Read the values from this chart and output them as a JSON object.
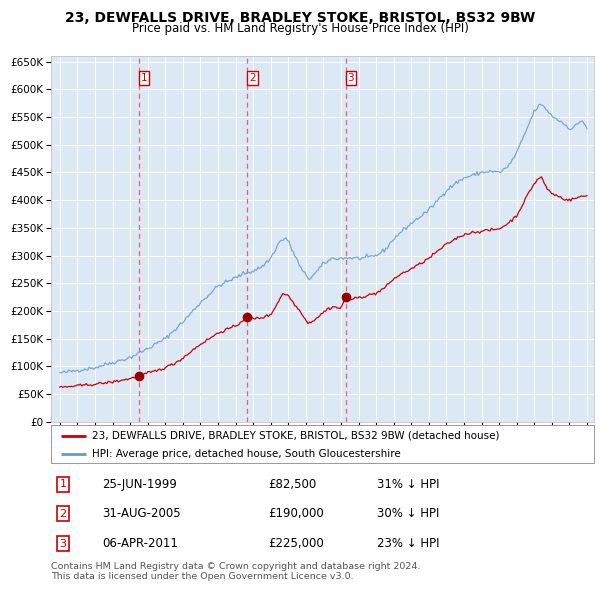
{
  "title": "23, DEWFALLS DRIVE, BRADLEY STOKE, BRISTOL, BS32 9BW",
  "subtitle": "Price paid vs. HM Land Registry's House Price Index (HPI)",
  "title_fontsize": 10,
  "subtitle_fontsize": 8.5,
  "plot_bg_color": "#dce9f5",
  "fig_bg_color": "#ffffff",
  "legend_label_red": "23, DEWFALLS DRIVE, BRADLEY STOKE, BRISTOL, BS32 9BW (detached house)",
  "legend_label_blue": "HPI: Average price, detached house, South Gloucestershire",
  "footnote_line1": "Contains HM Land Registry data © Crown copyright and database right 2024.",
  "footnote_line2": "This data is licensed under the Open Government Licence v3.0.",
  "sales": [
    {
      "num": 1,
      "date_year": 1999.48,
      "price": 82500,
      "label": "25-JUN-1999",
      "price_label": "£82,500",
      "hpi_diff": "31% ↓ HPI"
    },
    {
      "num": 2,
      "date_year": 2005.66,
      "price": 190000,
      "label": "31-AUG-2005",
      "price_label": "£190,000",
      "hpi_diff": "30% ↓ HPI"
    },
    {
      "num": 3,
      "date_year": 2011.26,
      "price": 225000,
      "label": "06-APR-2011",
      "price_label": "£225,000",
      "hpi_diff": "23% ↓ HPI"
    }
  ],
  "red_line_color": "#cc0000",
  "blue_line_color": "#6699cc",
  "vline_color": "#e05050",
  "dot_color": "#990000",
  "ylim": [
    0,
    660000
  ],
  "yticks": [
    0,
    50000,
    100000,
    150000,
    200000,
    250000,
    300000,
    350000,
    400000,
    450000,
    500000,
    550000,
    600000,
    650000
  ],
  "xlim_start": 1994.5,
  "xlim_end": 2025.4,
  "xticks": [
    1995,
    1996,
    1997,
    1998,
    1999,
    2000,
    2001,
    2002,
    2003,
    2004,
    2005,
    2006,
    2007,
    2008,
    2009,
    2010,
    2011,
    2012,
    2013,
    2014,
    2015,
    2016,
    2017,
    2018,
    2019,
    2020,
    2021,
    2022,
    2023,
    2024,
    2025
  ],
  "hpi_anchors": [
    [
      1995.0,
      88000
    ],
    [
      1996.0,
      93000
    ],
    [
      1997.0,
      98000
    ],
    [
      1998.0,
      107000
    ],
    [
      1999.0,
      116000
    ],
    [
      2000.0,
      132000
    ],
    [
      2001.0,
      150000
    ],
    [
      2002.0,
      180000
    ],
    [
      2003.0,
      215000
    ],
    [
      2004.0,
      245000
    ],
    [
      2005.0,
      260000
    ],
    [
      2005.5,
      268000
    ],
    [
      2006.0,
      272000
    ],
    [
      2006.5,
      280000
    ],
    [
      2007.0,
      295000
    ],
    [
      2007.5,
      325000
    ],
    [
      2007.9,
      332000
    ],
    [
      2008.3,
      305000
    ],
    [
      2008.8,
      272000
    ],
    [
      2009.2,
      258000
    ],
    [
      2009.6,
      270000
    ],
    [
      2010.0,
      285000
    ],
    [
      2010.5,
      295000
    ],
    [
      2011.0,
      295000
    ],
    [
      2011.5,
      296000
    ],
    [
      2012.0,
      295000
    ],
    [
      2012.5,
      296000
    ],
    [
      2013.0,
      300000
    ],
    [
      2013.5,
      310000
    ],
    [
      2014.0,
      330000
    ],
    [
      2014.5,
      345000
    ],
    [
      2015.0,
      358000
    ],
    [
      2015.5,
      370000
    ],
    [
      2016.0,
      382000
    ],
    [
      2016.5,
      400000
    ],
    [
      2017.0,
      418000
    ],
    [
      2017.5,
      430000
    ],
    [
      2018.0,
      440000
    ],
    [
      2018.5,
      445000
    ],
    [
      2019.0,
      450000
    ],
    [
      2019.5,
      452000
    ],
    [
      2020.0,
      450000
    ],
    [
      2020.5,
      460000
    ],
    [
      2021.0,
      485000
    ],
    [
      2021.4,
      515000
    ],
    [
      2021.8,
      545000
    ],
    [
      2022.0,
      560000
    ],
    [
      2022.3,
      572000
    ],
    [
      2022.6,
      568000
    ],
    [
      2022.9,
      555000
    ],
    [
      2023.2,
      548000
    ],
    [
      2023.5,
      542000
    ],
    [
      2023.8,
      535000
    ],
    [
      2024.1,
      528000
    ],
    [
      2024.4,
      535000
    ],
    [
      2024.7,
      545000
    ],
    [
      2025.0,
      530000
    ]
  ],
  "red_anchors": [
    [
      1995.0,
      62000
    ],
    [
      1996.0,
      65000
    ],
    [
      1997.0,
      68000
    ],
    [
      1998.0,
      72000
    ],
    [
      1999.0,
      78000
    ],
    [
      1999.48,
      82500
    ],
    [
      2000.0,
      88000
    ],
    [
      2000.5,
      92000
    ],
    [
      2001.0,
      98000
    ],
    [
      2001.5,
      105000
    ],
    [
      2002.0,
      115000
    ],
    [
      2002.5,
      128000
    ],
    [
      2003.0,
      140000
    ],
    [
      2003.5,
      150000
    ],
    [
      2004.0,
      160000
    ],
    [
      2004.5,
      167000
    ],
    [
      2005.0,
      172000
    ],
    [
      2005.66,
      190000
    ],
    [
      2006.0,
      186000
    ],
    [
      2006.5,
      188000
    ],
    [
      2007.0,
      193000
    ],
    [
      2007.4,
      215000
    ],
    [
      2007.7,
      232000
    ],
    [
      2008.0,
      228000
    ],
    [
      2008.4,
      210000
    ],
    [
      2008.8,
      195000
    ],
    [
      2009.1,
      178000
    ],
    [
      2009.4,
      182000
    ],
    [
      2009.8,
      192000
    ],
    [
      2010.2,
      203000
    ],
    [
      2010.6,
      208000
    ],
    [
      2011.0,
      204000
    ],
    [
      2011.26,
      225000
    ],
    [
      2011.5,
      220000
    ],
    [
      2012.0,
      224000
    ],
    [
      2012.5,
      228000
    ],
    [
      2013.0,
      232000
    ],
    [
      2013.5,
      242000
    ],
    [
      2014.0,
      258000
    ],
    [
      2014.5,
      268000
    ],
    [
      2015.0,
      276000
    ],
    [
      2015.5,
      285000
    ],
    [
      2016.0,
      295000
    ],
    [
      2016.5,
      308000
    ],
    [
      2017.0,
      320000
    ],
    [
      2017.5,
      330000
    ],
    [
      2018.0,
      338000
    ],
    [
      2018.5,
      342000
    ],
    [
      2019.0,
      344000
    ],
    [
      2019.5,
      346000
    ],
    [
      2020.0,
      348000
    ],
    [
      2020.5,
      358000
    ],
    [
      2021.0,
      372000
    ],
    [
      2021.3,
      390000
    ],
    [
      2021.6,
      408000
    ],
    [
      2021.9,
      425000
    ],
    [
      2022.2,
      438000
    ],
    [
      2022.4,
      442000
    ],
    [
      2022.7,
      422000
    ],
    [
      2023.0,
      412000
    ],
    [
      2023.3,
      408000
    ],
    [
      2023.7,
      402000
    ],
    [
      2024.0,
      400000
    ],
    [
      2024.3,
      403000
    ],
    [
      2024.6,
      406000
    ],
    [
      2025.0,
      408000
    ]
  ]
}
